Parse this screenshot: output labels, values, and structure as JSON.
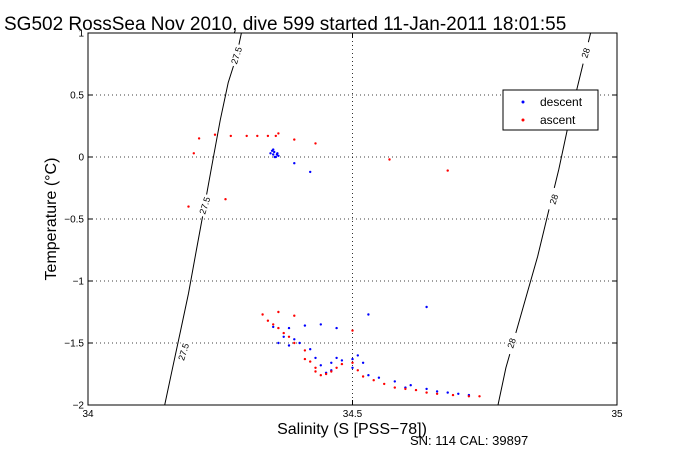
{
  "chart_data": {
    "type": "scatter",
    "title": "SG502 RossSea Nov 2010, dive 599 started 11-Jan-2011 18:01:55",
    "xlabel": "Salinity (S [PSS−78])",
    "ylabel": "Temperature (°C)",
    "footer": "SN: 114  CAL: 39897",
    "xlim": [
      34,
      35
    ],
    "ylim": [
      -2,
      1
    ],
    "x_ticks": [
      34,
      34.5,
      35
    ],
    "x_tick_labels": [
      "34",
      "34.5",
      "35"
    ],
    "y_ticks": [
      -2,
      -1.5,
      -1,
      -0.5,
      0,
      0.5,
      1
    ],
    "y_tick_labels": [
      "−2",
      "−1.5",
      "−1",
      "−0.5",
      "0",
      "0.5",
      "1"
    ],
    "grid": true,
    "legend_position": "top-right",
    "series": [
      {
        "name": "descent",
        "color": "#0000ff",
        "points": [
          [
            34.345,
            0.03
          ],
          [
            34.35,
            0.02
          ],
          [
            34.352,
            0.04
          ],
          [
            34.355,
            0.0
          ],
          [
            34.357,
            0.02
          ],
          [
            34.36,
            0.01
          ],
          [
            34.348,
            0.05
          ],
          [
            34.353,
            0.0
          ],
          [
            34.358,
            0.03
          ],
          [
            34.35,
            0.06
          ],
          [
            34.39,
            -0.05
          ],
          [
            34.42,
            -0.12
          ],
          [
            34.35,
            -1.37
          ],
          [
            34.38,
            -1.38
          ],
          [
            34.37,
            -1.45
          ],
          [
            34.39,
            -1.47
          ],
          [
            34.41,
            -1.36
          ],
          [
            34.44,
            -1.35
          ],
          [
            34.47,
            -1.38
          ],
          [
            34.36,
            -1.5
          ],
          [
            34.38,
            -1.52
          ],
          [
            34.4,
            -1.5
          ],
          [
            34.42,
            -1.55
          ],
          [
            34.43,
            -1.62
          ],
          [
            34.44,
            -1.68
          ],
          [
            34.46,
            -1.66
          ],
          [
            34.47,
            -1.62
          ],
          [
            34.48,
            -1.64
          ],
          [
            34.5,
            -1.63
          ],
          [
            34.51,
            -1.6
          ],
          [
            34.52,
            -1.66
          ],
          [
            34.5,
            -1.7
          ],
          [
            34.53,
            -1.76
          ],
          [
            34.55,
            -1.78
          ],
          [
            34.58,
            -1.81
          ],
          [
            34.61,
            -1.84
          ],
          [
            34.64,
            -1.87
          ],
          [
            34.66,
            -1.89
          ],
          [
            34.68,
            -1.9
          ],
          [
            34.7,
            -1.91
          ],
          [
            34.72,
            -1.92
          ],
          [
            34.6,
            -1.86
          ],
          [
            34.53,
            -1.27
          ],
          [
            34.64,
            -1.21
          ],
          [
            34.45,
            -1.74
          ],
          [
            34.46,
            -1.72
          ]
        ]
      },
      {
        "name": "ascent",
        "color": "#ff0000",
        "points": [
          [
            34.2,
            0.03
          ],
          [
            34.21,
            0.15
          ],
          [
            34.24,
            0.18
          ],
          [
            34.27,
            0.17
          ],
          [
            34.3,
            0.17
          ],
          [
            34.32,
            0.17
          ],
          [
            34.34,
            0.17
          ],
          [
            34.355,
            0.17
          ],
          [
            34.36,
            0.19
          ],
          [
            34.39,
            0.14
          ],
          [
            34.43,
            0.11
          ],
          [
            34.19,
            -0.4
          ],
          [
            34.26,
            -0.34
          ],
          [
            34.57,
            -0.02
          ],
          [
            34.68,
            -0.11
          ],
          [
            34.36,
            -1.25
          ],
          [
            34.39,
            -1.28
          ],
          [
            34.33,
            -1.27
          ],
          [
            34.34,
            -1.32
          ],
          [
            34.35,
            -1.35
          ],
          [
            34.36,
            -1.38
          ],
          [
            34.37,
            -1.42
          ],
          [
            34.38,
            -1.45
          ],
          [
            34.39,
            -1.5
          ],
          [
            34.41,
            -1.56
          ],
          [
            34.42,
            -1.65
          ],
          [
            34.43,
            -1.73
          ],
          [
            34.44,
            -1.76
          ],
          [
            34.45,
            -1.75
          ],
          [
            34.46,
            -1.73
          ],
          [
            34.47,
            -1.7
          ],
          [
            34.48,
            -1.67
          ],
          [
            34.5,
            -1.66
          ],
          [
            34.51,
            -1.72
          ],
          [
            34.52,
            -1.77
          ],
          [
            34.54,
            -1.8
          ],
          [
            34.56,
            -1.83
          ],
          [
            34.58,
            -1.86
          ],
          [
            34.6,
            -1.87
          ],
          [
            34.62,
            -1.88
          ],
          [
            34.64,
            -1.9
          ],
          [
            34.66,
            -1.91
          ],
          [
            34.69,
            -1.92
          ],
          [
            34.72,
            -1.93
          ],
          [
            34.74,
            -1.93
          ],
          [
            34.5,
            -1.4
          ],
          [
            34.41,
            -1.63
          ],
          [
            34.43,
            -1.7
          ]
        ]
      }
    ],
    "contours": [
      {
        "label": "27.5",
        "color": "#000000",
        "points": [
          [
            34.145,
            -2.0
          ],
          [
            34.16,
            -1.7
          ],
          [
            34.175,
            -1.4
          ],
          [
            34.19,
            -1.1
          ],
          [
            34.205,
            -0.75
          ],
          [
            34.22,
            -0.4
          ],
          [
            34.235,
            -0.05
          ],
          [
            34.25,
            0.3
          ],
          [
            34.265,
            0.6
          ],
          [
            34.28,
            0.8
          ],
          [
            34.29,
            1.0
          ]
        ],
        "labels_at": [
          [
            34.18,
            -1.57
          ],
          [
            34.22,
            -0.39
          ],
          [
            34.28,
            0.82
          ]
        ]
      },
      {
        "label": "28",
        "color": "#000000",
        "points": [
          [
            34.775,
            -2.0
          ],
          [
            34.79,
            -1.7
          ],
          [
            34.81,
            -1.4
          ],
          [
            34.83,
            -1.1
          ],
          [
            34.85,
            -0.8
          ],
          [
            34.87,
            -0.45
          ],
          [
            34.89,
            -0.1
          ],
          [
            34.91,
            0.3
          ],
          [
            34.93,
            0.65
          ],
          [
            34.95,
            1.0
          ]
        ],
        "labels_at": [
          [
            34.8,
            -1.5
          ],
          [
            34.88,
            -0.34
          ],
          [
            34.94,
            0.84
          ]
        ]
      }
    ]
  }
}
